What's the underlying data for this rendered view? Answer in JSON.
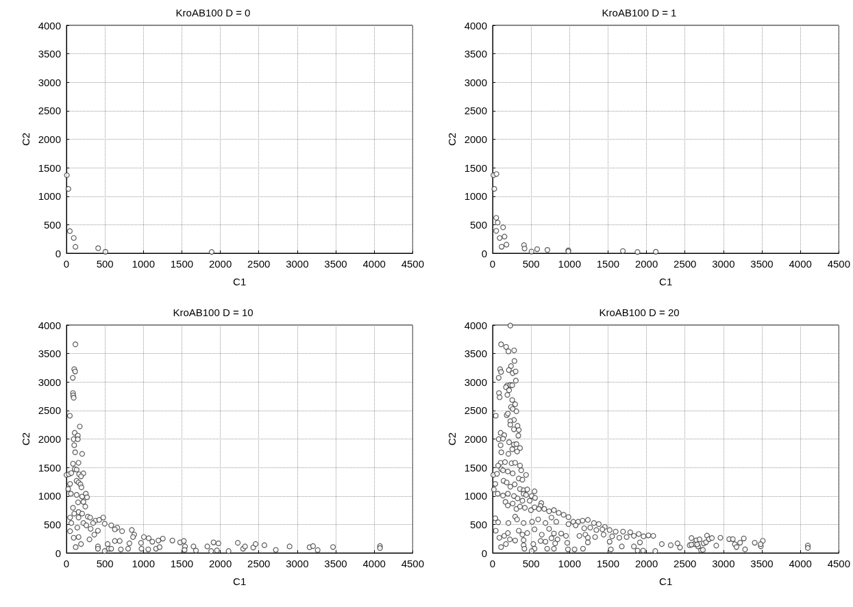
{
  "chart_data": [
    {
      "type": "scatter",
      "title": "KroAB100 D = 0",
      "xlabel": "C1",
      "ylabel": "C2",
      "xlim": [
        0,
        4500
      ],
      "ylim": [
        0,
        4000
      ],
      "xticks": [
        0,
        500,
        1000,
        1500,
        2000,
        2500,
        3000,
        3500,
        4000,
        4500
      ],
      "yticks": [
        0,
        500,
        1000,
        1500,
        2000,
        2500,
        3000,
        3500,
        4000
      ],
      "grid": true,
      "marker": "circle",
      "series": [
        {
          "color": "#333333",
          "x": [
            5,
            25,
            44,
            95,
            117,
            412,
            507,
            1887
          ],
          "values": [
            1370,
            1129,
            388,
            267,
            112,
            88,
            25,
            21
          ]
        }
      ]
    },
    {
      "type": "scatter",
      "title": "KroAB100 D = 1",
      "xlabel": "C1",
      "ylabel": "C2",
      "xlim": [
        0,
        4500
      ],
      "ylim": [
        0,
        4000
      ],
      "xticks": [
        0,
        500,
        1000,
        1500,
        2000,
        2500,
        3000,
        3500,
        4000,
        4500
      ],
      "yticks": [
        0,
        500,
        1000,
        1500,
        2000,
        2500,
        3000,
        3500,
        4000
      ],
      "grid": true,
      "marker": "circle",
      "series": [
        {
          "color": "#333333",
          "x": [
            10,
            50,
            22,
            47,
            66,
            136,
            47,
            92,
            155,
            117,
            180,
            408,
            415,
            506,
            579,
            712,
            984,
            984,
            1693,
            1883,
            2121
          ],
          "values": [
            1370,
            1390,
            1130,
            621,
            538,
            454,
            392,
            267,
            292,
            113,
            150,
            142,
            83,
            29,
            71,
            58,
            50,
            33,
            38,
            21,
            25
          ]
        }
      ]
    },
    {
      "type": "scatter",
      "title": "KroAB100 D = 10",
      "xlabel": "C1",
      "ylabel": "C2",
      "xlim": [
        0,
        4500
      ],
      "ylim": [
        0,
        4000
      ],
      "xticks": [
        0,
        500,
        1000,
        1500,
        2000,
        2500,
        3000,
        3500,
        4000,
        4500
      ],
      "yticks": [
        0,
        500,
        1000,
        1500,
        2000,
        2500,
        3000,
        3500,
        4000
      ],
      "grid": true,
      "marker": "circle",
      "series": [
        {
          "color": "#333333",
          "x": [
            116,
            101,
            113,
            82,
            85,
            88,
            94,
            44,
            173,
            107,
            148,
            94,
            148,
            101,
            113,
            204,
            85,
            157,
            107,
            132,
            0,
            31,
            63,
            164,
            220,
            189,
            132,
            157,
            182,
            195,
            47,
            22,
            57,
            132,
            204,
            252,
            267,
            220,
            245,
            151,
            85,
            157,
            101,
            204,
            47,
            157,
            277,
            308,
            377,
            425,
            478,
            220,
            63,
            258,
            346,
            497,
            582,
            660,
            629,
            723,
            849,
            881,
            865,
            47,
            141,
            314,
            409,
            362,
            299,
            157,
            94,
            189,
            120,
            409,
            409,
            535,
            550,
            582,
            497,
            629,
            692,
            707,
            802,
            818,
            1006,
            969,
            975,
            1069,
            1063,
            1116,
            1164,
            1195,
            1211,
            1252,
            1377,
            1478,
            1525,
            1541,
            1535,
            1651,
            1683,
            1831,
            1881,
            1912,
            1956,
            1975,
            2107,
            2227,
            2296,
            2321,
            2428,
            2459,
            2573,
            2721,
            2900,
            3160,
            3205,
            3265,
            3465,
            4075,
            4075
          ],
          "values": [
            3662,
            3226,
            3185,
            3074,
            2807,
            2766,
            2725,
            2408,
            2219,
            2108,
            2059,
            1997,
            1997,
            1891,
            1767,
            1739,
            1566,
            1582,
            1471,
            1463,
            1369,
            1381,
            1402,
            1381,
            1397,
            1344,
            1266,
            1237,
            1204,
            1151,
            1212,
            1122,
            1040,
            1019,
            990,
            1040,
            978,
            896,
            814,
            888,
            793,
            719,
            690,
            690,
            621,
            621,
            637,
            621,
            567,
            580,
            621,
            526,
            526,
            485,
            526,
            514,
            485,
            444,
            415,
            382,
            403,
            321,
            279,
            382,
            444,
            423,
            390,
            321,
            238,
            279,
            267,
            156,
            103,
            115,
            74,
            156,
            74,
            74,
            33,
            210,
            210,
            62,
            74,
            169,
            279,
            177,
            74,
            259,
            62,
            197,
            74,
            218,
            103,
            251,
            218,
            185,
            210,
            115,
            53,
            115,
            41,
            115,
            33,
            185,
            45,
            169,
            33,
            177,
            74,
            115,
            95,
            156,
            136,
            53,
            115,
            100,
            120,
            50,
            104,
            120,
            85
          ]
        }
      ]
    },
    {
      "type": "scatter",
      "title": "KroAB100 D = 20",
      "xlabel": "C1",
      "ylabel": "C2",
      "xlim": [
        0,
        4500
      ],
      "ylim": [
        0,
        4000
      ],
      "xticks": [
        0,
        500,
        1000,
        1500,
        2000,
        2500,
        3000,
        3500,
        4000,
        4500
      ],
      "yticks": [
        0,
        500,
        1000,
        1500,
        2000,
        2500,
        3000,
        3500,
        4000
      ],
      "grid": true,
      "marker": "circle",
      "series": [
        {
          "color": "#333333",
          "x": [
            230,
            110,
            176,
            205,
            280,
            284,
            239,
            211,
            261,
            299,
            98,
            110,
            79,
            302,
            189,
            230,
            255,
            173,
            214,
            82,
            91,
            192,
            255,
            293,
            239,
            261,
            309,
            41,
            183,
            198,
            277,
            230,
            230,
            324,
            277,
            340,
            334,
            104,
            151,
            79,
            135,
            214,
            277,
            309,
            356,
            318,
            255,
            104,
            113,
            205,
            104,
            161,
            72,
            246,
            293,
            356,
            9,
            57,
            113,
            135,
            198,
            261,
            372,
            435,
            340,
            387,
            142,
            183,
            230,
            287,
            356,
            403,
            450,
            35,
            16,
            66,
            135,
            198,
            277,
            324,
            403,
            435,
            545,
            507,
            551,
            387,
            482,
            633,
            622,
            167,
            198,
            261,
            309,
            356,
            419,
            498,
            545,
            602,
            671,
            734,
            797,
            860,
            923,
            986,
            1049,
            1112,
            1169,
            1238,
            1317,
            1380,
            1458,
            1521,
            1600,
            1695,
            1789,
            1899,
            2025,
            2088,
            35,
            72,
            205,
            293,
            318,
            403,
            513,
            592,
            687,
            765,
            828,
            986,
            1080,
            1191,
            1269,
            1348,
            1427,
            41,
            151,
            88,
            198,
            340,
            387,
            450,
            545,
            639,
            734,
            797,
            765,
            844,
            891,
            954,
            1128,
            1206,
            1238,
            1332,
            1443,
            1553,
            1647,
            1742,
            1836,
            1962,
            224,
            293,
            403,
            110,
            173,
            403,
            413,
            529,
            545,
            507,
            624,
            687,
            709,
            797,
            813,
            970,
            979,
            1065,
            1175,
            1238,
            1521,
            1537,
            1679,
            1836,
            1884,
            1956,
            1915,
            2114,
            2199,
            2315,
            2403,
            2436,
            2561,
            2624,
            2671,
            2709,
            2585,
            2585,
            2648,
            2658,
            2689,
            2733,
            2743,
            2774,
            2787,
            2812,
            2850,
            2907,
            2961,
            3075,
            3122,
            3148,
            3170,
            3217,
            3265,
            3281,
            3407,
            3486,
            3512,
            3483,
            4097,
            4097
          ],
          "values": [
            3991,
            3662,
            3617,
            3539,
            3555,
            3370,
            3280,
            3210,
            3156,
            3185,
            3226,
            3177,
            3074,
            3025,
            2939,
            2947,
            2943,
            2910,
            2857,
            2807,
            2733,
            2774,
            2684,
            2610,
            2561,
            2528,
            2487,
            2408,
            2417,
            2446,
            2334,
            2314,
            2252,
            2232,
            2170,
            2158,
            2059,
            2108,
            2067,
            1997,
            2006,
            1944,
            1903,
            1911,
            1841,
            1780,
            1821,
            1891,
            1767,
            1739,
            1582,
            1595,
            1533,
            1574,
            1582,
            1533,
            1369,
            1389,
            1471,
            1451,
            1430,
            1397,
            1451,
            1369,
            1307,
            1286,
            1266,
            1237,
            1163,
            1204,
            1122,
            1101,
            1114,
            1212,
            1114,
            1040,
            1007,
            1040,
            999,
            958,
            1040,
            1019,
            1081,
            999,
            966,
            917,
            917,
            875,
            826,
            896,
            834,
            867,
            773,
            814,
            793,
            752,
            801,
            773,
            773,
            732,
            752,
            703,
            670,
            629,
            547,
            547,
            567,
            580,
            526,
            506,
            456,
            403,
            374,
            374,
            362,
            333,
            308,
            300,
            608,
            538,
            526,
            637,
            588,
            526,
            547,
            588,
            526,
            621,
            547,
            506,
            485,
            432,
            444,
            403,
            415,
            390,
            300,
            267,
            349,
            390,
            321,
            349,
            415,
            321,
            423,
            341,
            259,
            238,
            341,
            300,
            300,
            321,
            267,
            279,
            321,
            292,
            267,
            279,
            300,
            292,
            238,
            218,
            226,
            103,
            156,
            136,
            74,
            156,
            74,
            33,
            210,
            197,
            74,
            74,
            169,
            177,
            62,
            62,
            74,
            185,
            197,
            62,
            115,
            115,
            41,
            41,
            185,
            33,
            156,
            136,
            169,
            95,
            136,
            156,
            115,
            45,
            262,
            146,
            221,
            150,
            238,
            54,
            167,
            188,
            304,
            242,
            262,
            129,
            267,
            242,
            242,
            154,
            104,
            179,
            254,
            63,
            179,
            117,
            213,
            154,
            129,
            88
          ]
        }
      ]
    }
  ]
}
